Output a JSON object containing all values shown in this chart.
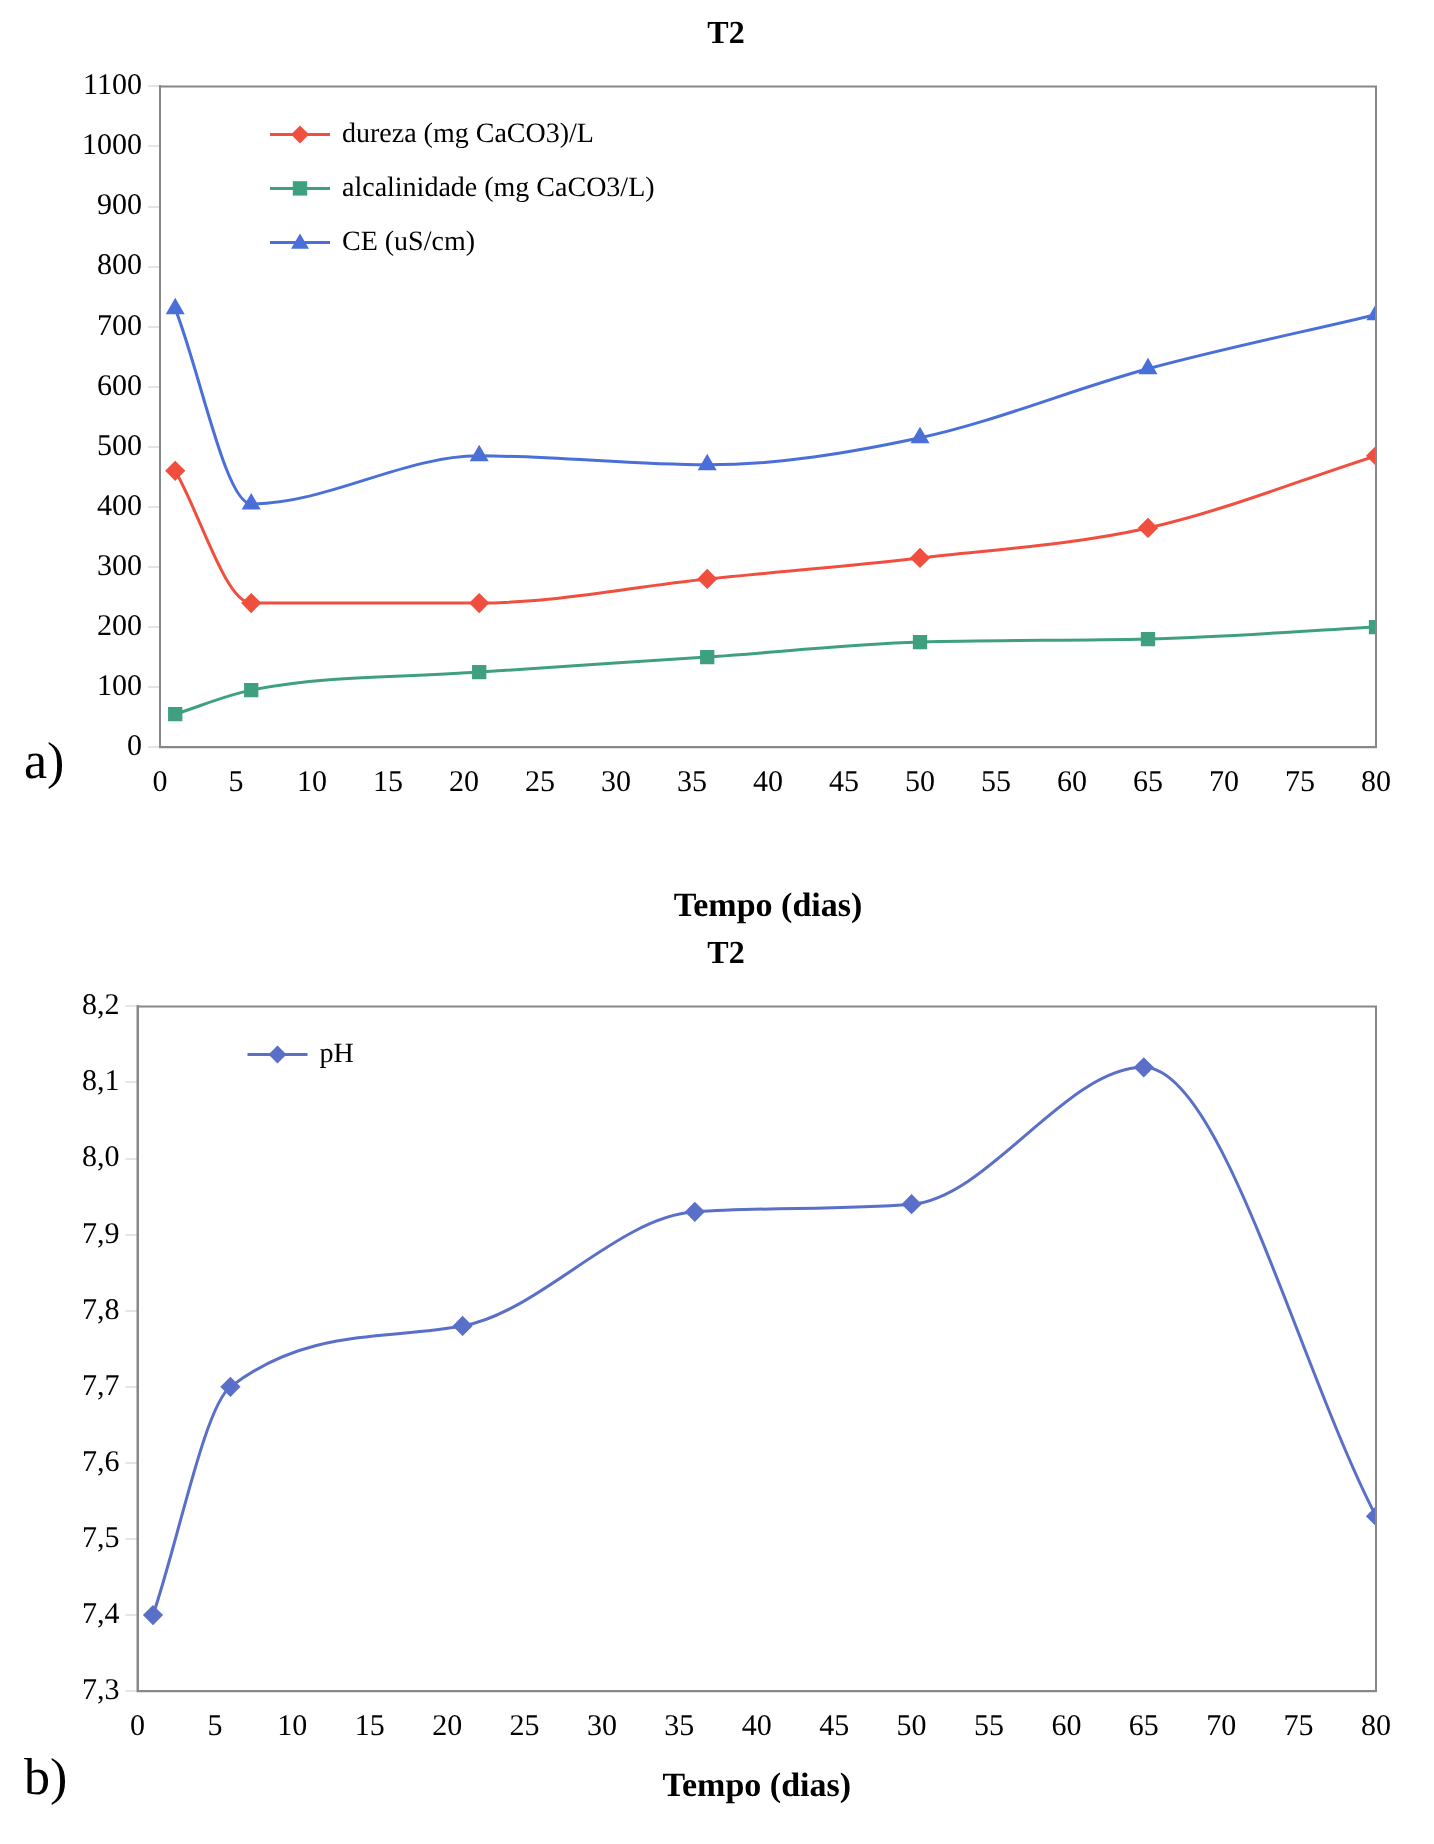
{
  "chart_data": [
    {
      "type": "line",
      "title": "T2",
      "xlabel": "Tempo (dias)",
      "x": [
        1,
        6,
        21,
        36,
        50,
        65,
        80
      ],
      "series": [
        {
          "name": "dureza (mg CaCO3)/L",
          "color": "#f04e3e",
          "marker": "diamond",
          "values": [
            460,
            240,
            240,
            280,
            315,
            365,
            485
          ]
        },
        {
          "name": "alcalinidade (mg CaCO3/L)",
          "color": "#3fa080",
          "marker": "square",
          "values": [
            55,
            95,
            125,
            150,
            175,
            180,
            200
          ]
        },
        {
          "name": "CE (uS/cm)",
          "color": "#4a6fd8",
          "marker": "triangle",
          "values": [
            730,
            405,
            485,
            470,
            515,
            630,
            720
          ]
        }
      ],
      "xlim": [
        0,
        80
      ],
      "xticks": [
        0,
        5,
        10,
        15,
        20,
        25,
        30,
        35,
        40,
        45,
        50,
        55,
        60,
        65,
        70,
        75,
        80
      ],
      "ylim": [
        0,
        1100
      ],
      "yticks": [
        0,
        100,
        200,
        300,
        400,
        500,
        600,
        700,
        800,
        900,
        1000,
        1100
      ],
      "grid": false,
      "legend": "top left",
      "annotations": [
        "a)"
      ]
    },
    {
      "type": "line",
      "title": "T2",
      "xlabel": "Tempo (dias)",
      "x": [
        1,
        6,
        21,
        36,
        50,
        65,
        80
      ],
      "series": [
        {
          "name": "pH",
          "color": "#5a6fc8",
          "marker": "diamond",
          "values": [
            7.4,
            7.7,
            7.78,
            7.93,
            7.94,
            8.12,
            7.53
          ]
        }
      ],
      "xlim": [
        0,
        80
      ],
      "xticks": [
        0,
        5,
        10,
        15,
        20,
        25,
        30,
        35,
        40,
        45,
        50,
        55,
        60,
        65,
        70,
        75,
        80
      ],
      "ylim": [
        7.3,
        8.2
      ],
      "yticks": [
        {
          "value": 7.3,
          "label": "7,3"
        },
        {
          "value": 7.4,
          "label": "7,4"
        },
        {
          "value": 7.5,
          "label": "7,5"
        },
        {
          "value": 7.6,
          "label": "7,6"
        },
        {
          "value": 7.7,
          "label": "7,7"
        },
        {
          "value": 7.8,
          "label": "7,8"
        },
        {
          "value": 7.9,
          "label": "7,9"
        },
        {
          "value": 8.0,
          "label": "8,0"
        },
        {
          "value": 8.1,
          "label": "8,1"
        },
        {
          "value": 8.2,
          "label": "8,2"
        }
      ],
      "grid": false,
      "legend": "top left",
      "annotations": [
        "b)"
      ]
    }
  ]
}
